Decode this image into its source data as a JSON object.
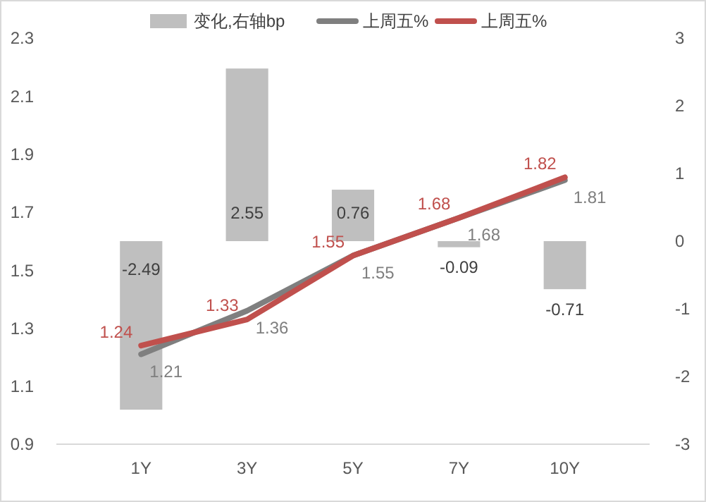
{
  "chart_data": {
    "type": "bar",
    "categories": [
      "1Y",
      "3Y",
      "5Y",
      "7Y",
      "10Y"
    ],
    "series": [
      {
        "name": "变化,右轴bp",
        "axis": "y2",
        "color": "#bfbfbf",
        "values": [
          -2.49,
          2.55,
          0.76,
          -0.09,
          -0.71
        ]
      },
      {
        "name": "上周五%",
        "type": "line",
        "color": "#7f7f7f",
        "values": [
          1.21,
          1.36,
          1.55,
          1.68,
          1.81
        ]
      },
      {
        "name": "上周五%",
        "type": "line",
        "color": "#c0504d",
        "values": [
          1.24,
          1.33,
          1.55,
          1.68,
          1.82
        ]
      }
    ],
    "ylim": [
      0.9,
      2.3
    ],
    "yticks": [
      {
        "value": 0.9,
        "label": "0.9"
      },
      1.1,
      1.3,
      1.5,
      1.7,
      1.9,
      2.1,
      2.3
    ],
    "y2lim": [
      -3,
      3
    ],
    "y2ticks": [
      -3,
      -2,
      -1,
      0,
      1,
      2,
      3
    ],
    "data_labels": true,
    "legend": "top",
    "grid": false
  }
}
